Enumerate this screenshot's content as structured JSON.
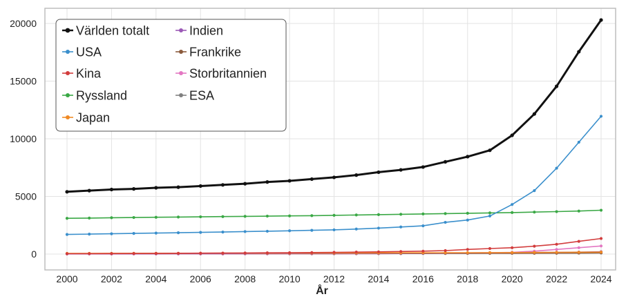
{
  "chart_data": {
    "type": "line",
    "title": "",
    "xlabel": "År",
    "ylabel": "",
    "xlim": [
      2000,
      2024
    ],
    "ylim": [
      0,
      20000
    ],
    "x_ticks": [
      2000,
      2002,
      2004,
      2006,
      2008,
      2010,
      2012,
      2014,
      2016,
      2018,
      2020,
      2022,
      2024
    ],
    "y_ticks": [
      0,
      5000,
      10000,
      15000,
      20000
    ],
    "y_tick_labels": [
      "0",
      "5000",
      "10000",
      "15000",
      "20000"
    ],
    "grid": true,
    "legend_position": "top-left",
    "x": [
      2000,
      2001,
      2002,
      2003,
      2004,
      2005,
      2006,
      2007,
      2008,
      2009,
      2010,
      2011,
      2012,
      2013,
      2014,
      2015,
      2016,
      2017,
      2018,
      2019,
      2020,
      2021,
      2022,
      2023,
      2024
    ],
    "series": [
      {
        "name": "Världen totalt",
        "color": "#111111",
        "values": [
          5400,
          5500,
          5600,
          5650,
          5750,
          5800,
          5900,
          6000,
          6100,
          6250,
          6350,
          6500,
          6650,
          6850,
          7100,
          7300,
          7550,
          8000,
          8450,
          9000,
          10300,
          12150,
          14550,
          17550,
          20300
        ]
      },
      {
        "name": "USA",
        "color": "#3a8fcc",
        "values": [
          1700,
          1730,
          1760,
          1790,
          1820,
          1850,
          1880,
          1910,
          1950,
          1980,
          2020,
          2060,
          2100,
          2170,
          2250,
          2350,
          2450,
          2750,
          2950,
          3300,
          4300,
          5500,
          7450,
          9700,
          11950
        ]
      },
      {
        "name": "Kina",
        "color": "#d23c3c",
        "values": [
          30,
          35,
          40,
          45,
          55,
          65,
          75,
          85,
          95,
          105,
          115,
          130,
          150,
          170,
          190,
          220,
          250,
          300,
          400,
          480,
          550,
          680,
          850,
          1100,
          1350
        ]
      },
      {
        "name": "Ryssland",
        "color": "#3aa845",
        "values": [
          3100,
          3120,
          3150,
          3170,
          3190,
          3210,
          3230,
          3250,
          3270,
          3290,
          3310,
          3330,
          3360,
          3390,
          3420,
          3450,
          3480,
          3510,
          3540,
          3570,
          3600,
          3640,
          3680,
          3730,
          3800
        ]
      },
      {
        "name": "Japan",
        "color": "#f08a24",
        "values": [
          60,
          62,
          64,
          66,
          68,
          70,
          72,
          75,
          78,
          80,
          83,
          86,
          90,
          95,
          100,
          105,
          110,
          115,
          120,
          125,
          130,
          140,
          150,
          160,
          170
        ]
      },
      {
        "name": "Indien",
        "color": "#9b59b6",
        "values": [
          20,
          22,
          24,
          26,
          28,
          30,
          33,
          36,
          40,
          44,
          48,
          52,
          56,
          62,
          68,
          75,
          82,
          90,
          100,
          110,
          120,
          135,
          150,
          170,
          200
        ]
      },
      {
        "name": "Frankrike",
        "color": "#8b5a3c",
        "values": [
          25,
          26,
          27,
          28,
          29,
          30,
          31,
          32,
          33,
          34,
          35,
          36,
          38,
          40,
          42,
          45,
          48,
          52,
          56,
          60,
          65,
          70,
          75,
          85,
          100
        ]
      },
      {
        "name": "Storbritannien",
        "color": "#e377c2",
        "values": [
          10,
          11,
          12,
          13,
          14,
          15,
          16,
          17,
          18,
          20,
          22,
          24,
          26,
          30,
          35,
          45,
          60,
          80,
          100,
          120,
          150,
          250,
          400,
          550,
          700
        ]
      },
      {
        "name": "ESA",
        "color": "#808080",
        "values": [
          40,
          42,
          44,
          46,
          48,
          50,
          52,
          54,
          56,
          58,
          60,
          62,
          65,
          68,
          70,
          72,
          75,
          78,
          80,
          82,
          85,
          88,
          90,
          95,
          100
        ]
      }
    ]
  }
}
